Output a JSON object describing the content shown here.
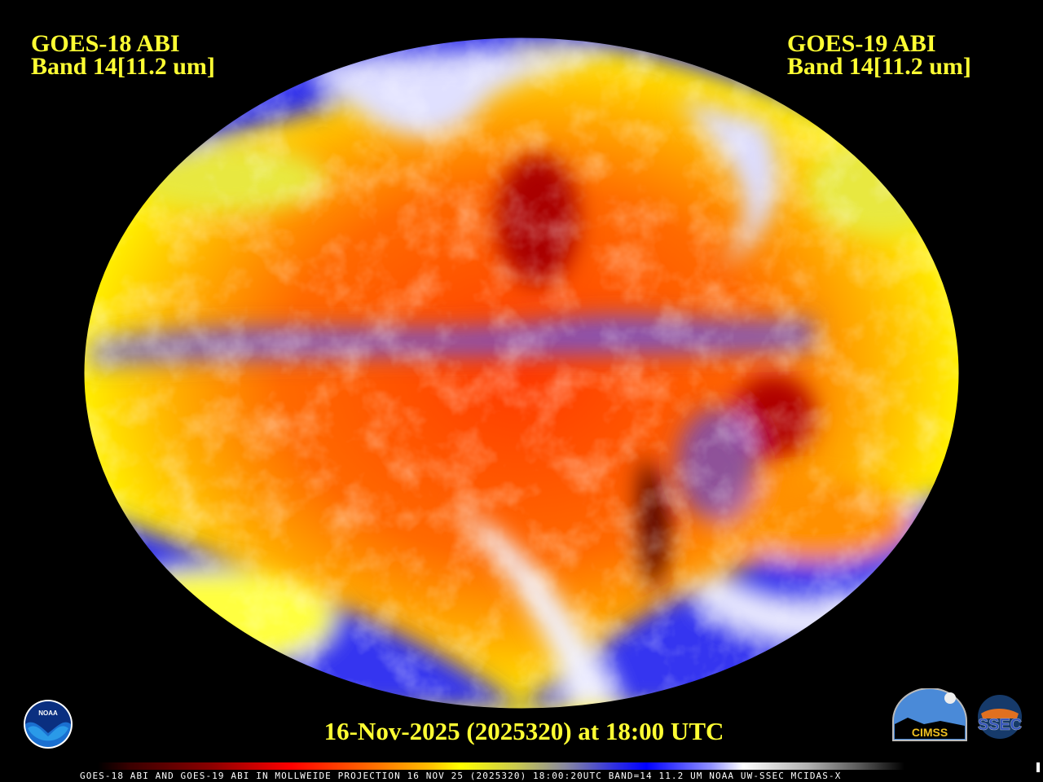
{
  "header": {
    "left_title_line1": "GOES-18 ABI",
    "left_title_line2": "Band 14[11.2 um]",
    "right_title_line1": "GOES-19 ABI",
    "right_title_line2": "Band 14[11.2 um]"
  },
  "date_label": "16-Nov-2025 (2025320) at 18:00 UTC",
  "footer_text": "GOES-18 ABI AND GOES-19 ABI IN MOLLWEIDE PROJECTION 16 NOV 25 (2025320) 18:00:20UTC BAND=14 11.2 UM NOAA UW-SSEC MCIDAS-X",
  "projection": "Mollweide",
  "logos": {
    "noaa": "NOAA",
    "cimss": "CIMSS",
    "ssec": "SSEC"
  },
  "colors": {
    "title_text": "#ffff33",
    "background": "#000000",
    "warm": "#ff3300",
    "cold_cloud": "#0000ff",
    "coldest": "#ffffff"
  }
}
